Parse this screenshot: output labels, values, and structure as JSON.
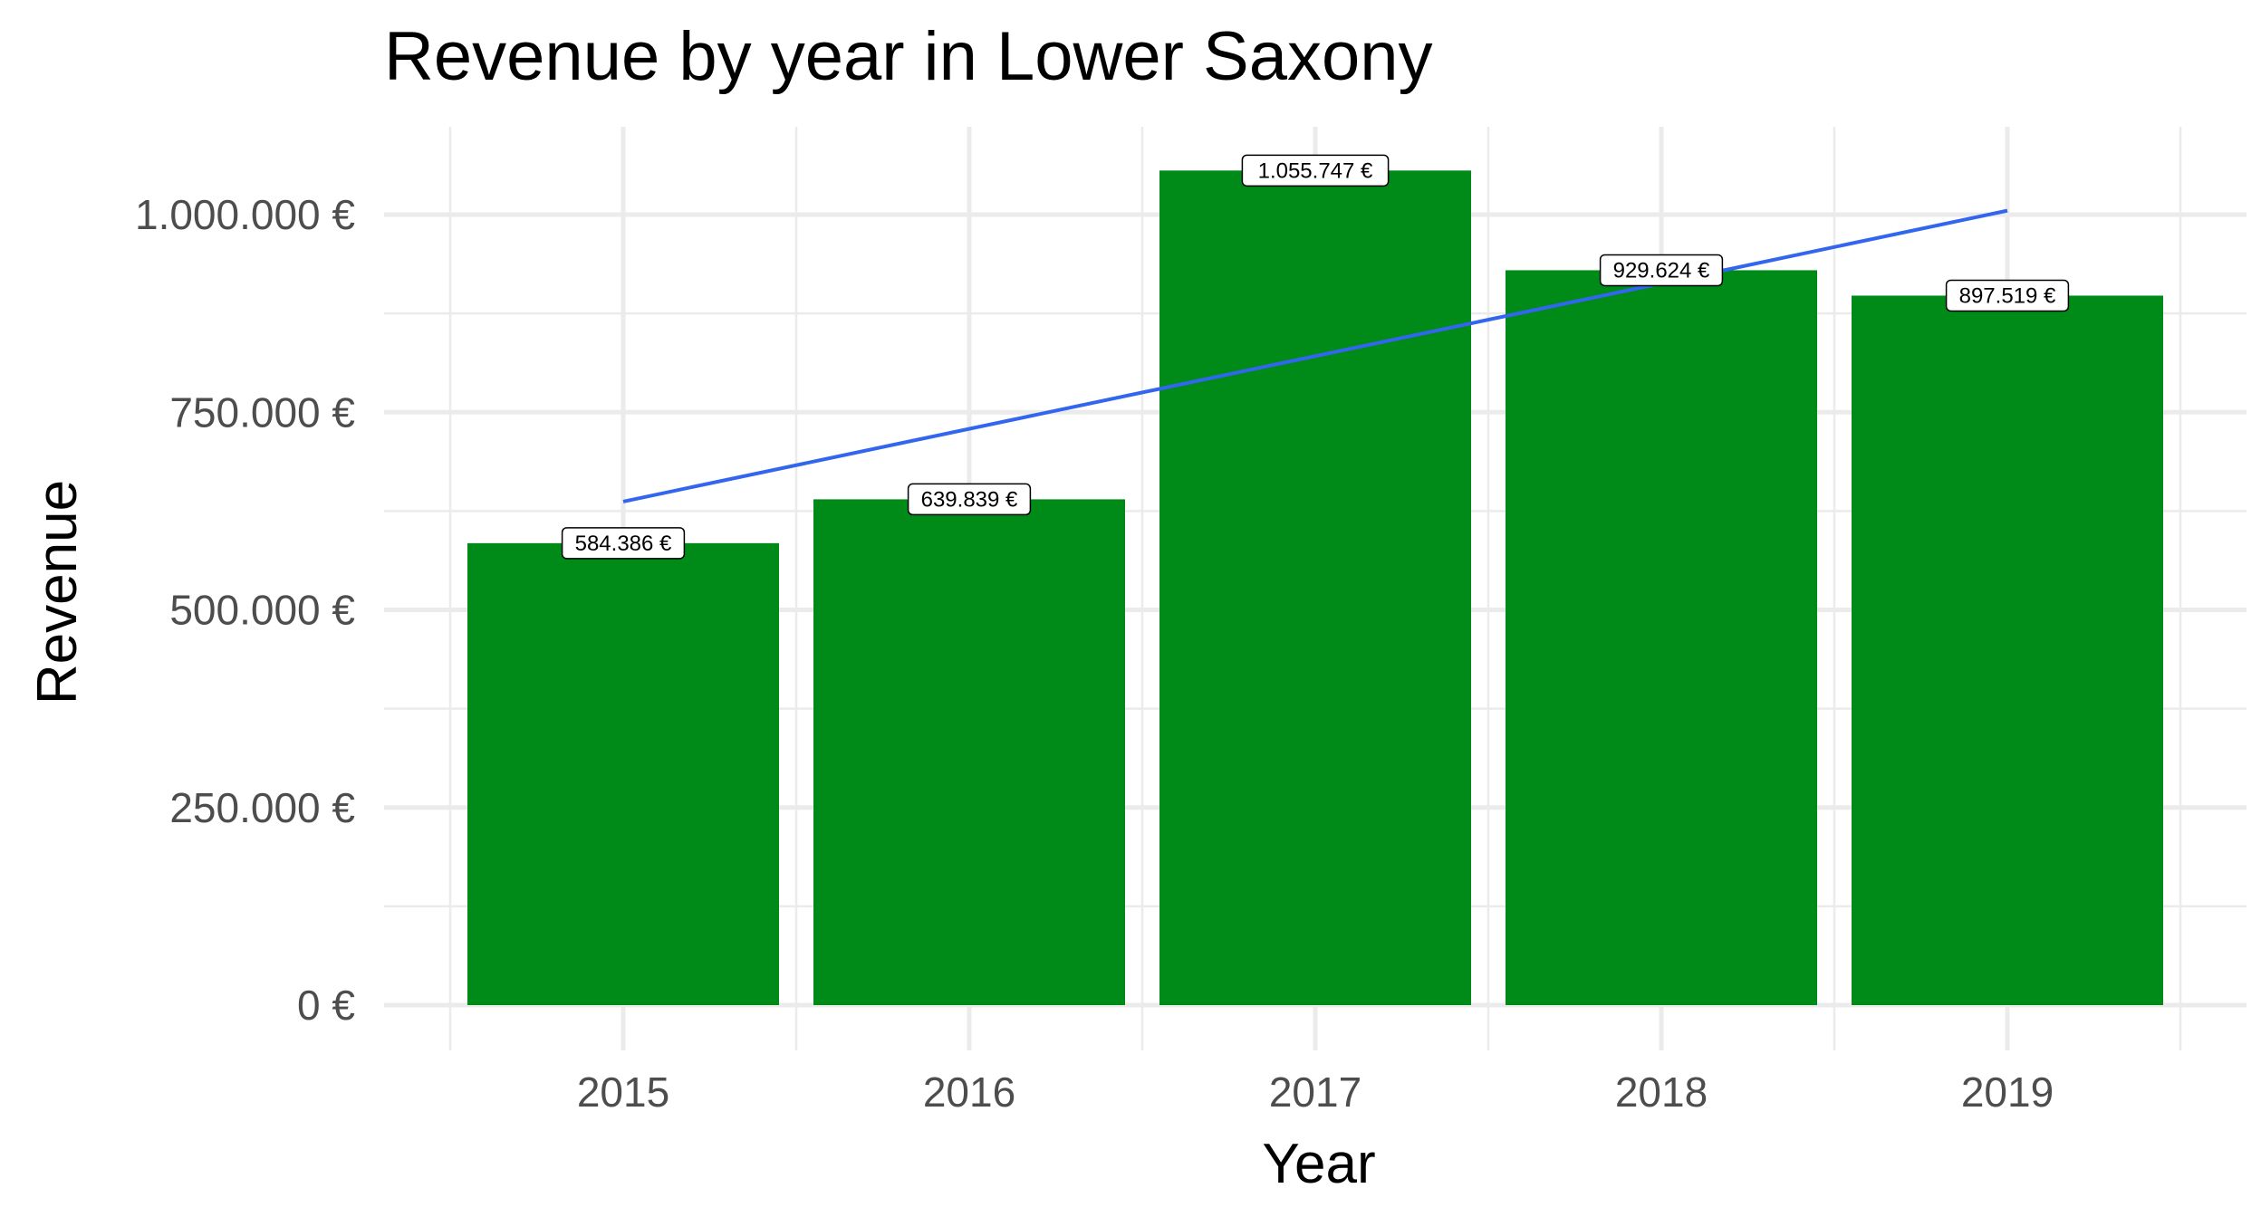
{
  "chart_data": {
    "type": "bar",
    "title": "Revenue by year in Lower Saxony",
    "xlabel": "Year",
    "ylabel": "Revenue",
    "categories": [
      "2015",
      "2016",
      "2017",
      "2018",
      "2019"
    ],
    "values": [
      584386,
      639839,
      1055747,
      929624,
      897519
    ],
    "data_labels": [
      "584.386 €",
      "639.839 €",
      "1.055.747 €",
      "929.624 €",
      "897.519 €"
    ],
    "ylim": [
      0,
      1100000
    ],
    "y_ticks": [
      0,
      250000,
      500000,
      750000,
      1000000
    ],
    "y_tick_labels": [
      "0 €",
      "250.000 €",
      "500.000 €",
      "750.000 €",
      "1.000.000 €"
    ],
    "trend_line": {
      "start": 637000,
      "end": 1005000
    },
    "grid": true,
    "colors": {
      "bar": "#008b19",
      "trend": "#3366ee",
      "grid": "#ebebeb"
    }
  }
}
